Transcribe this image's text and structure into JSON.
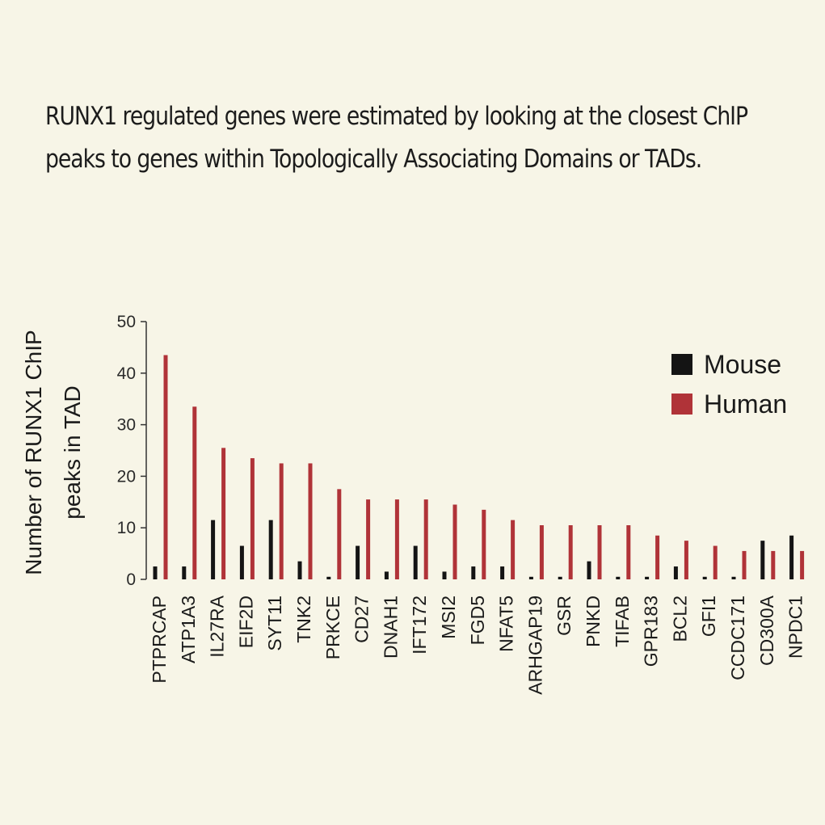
{
  "caption": "  RUNX1 regulated genes were estimated by looking at the closest ChIP peaks to genes within Topologically Associating Domains or TADs.",
  "chart_data": {
    "type": "bar",
    "title": "",
    "xlabel": "",
    "ylabel_line1": "Number of RUNX1 ChIP",
    "ylabel_line2": "peaks in TAD",
    "ylim": [
      0,
      50
    ],
    "yticks": [
      0,
      10,
      20,
      30,
      40,
      50
    ],
    "grid": false,
    "legend_position": "top-right",
    "categories": [
      "PTPRCAP",
      "ATP1A3",
      "IL27RA",
      "EIF2D",
      "SYT11",
      "TNK2",
      "PRKCE",
      "CD27",
      "DNAH1",
      "IFT172",
      "MSI2",
      "FGD5",
      "NFAT5",
      "ARHGAP19",
      "GSR",
      "PNKD",
      "TIFAB",
      "GPR183",
      "BCL2",
      "GFI1",
      "CCDC171",
      "CD300A",
      "NPDC1"
    ],
    "series": [
      {
        "name": "Mouse",
        "color": "#141414",
        "values": [
          2.5,
          2.5,
          11.5,
          6.5,
          11.5,
          3.5,
          0.5,
          6.5,
          1.5,
          6.5,
          1.5,
          2.5,
          2.5,
          0.5,
          0.5,
          3.5,
          0.5,
          0.5,
          2.5,
          0.5,
          0.5,
          7.5,
          8.5
        ]
      },
      {
        "name": "Human",
        "color": "#b03338",
        "values": [
          43.5,
          33.5,
          25.5,
          23.5,
          22.5,
          22.5,
          17.5,
          15.5,
          15.5,
          15.5,
          14.5,
          13.5,
          11.5,
          10.5,
          10.5,
          10.5,
          10.5,
          8.5,
          7.5,
          6.5,
          5.5,
          5.5,
          5.5
        ]
      }
    ]
  }
}
